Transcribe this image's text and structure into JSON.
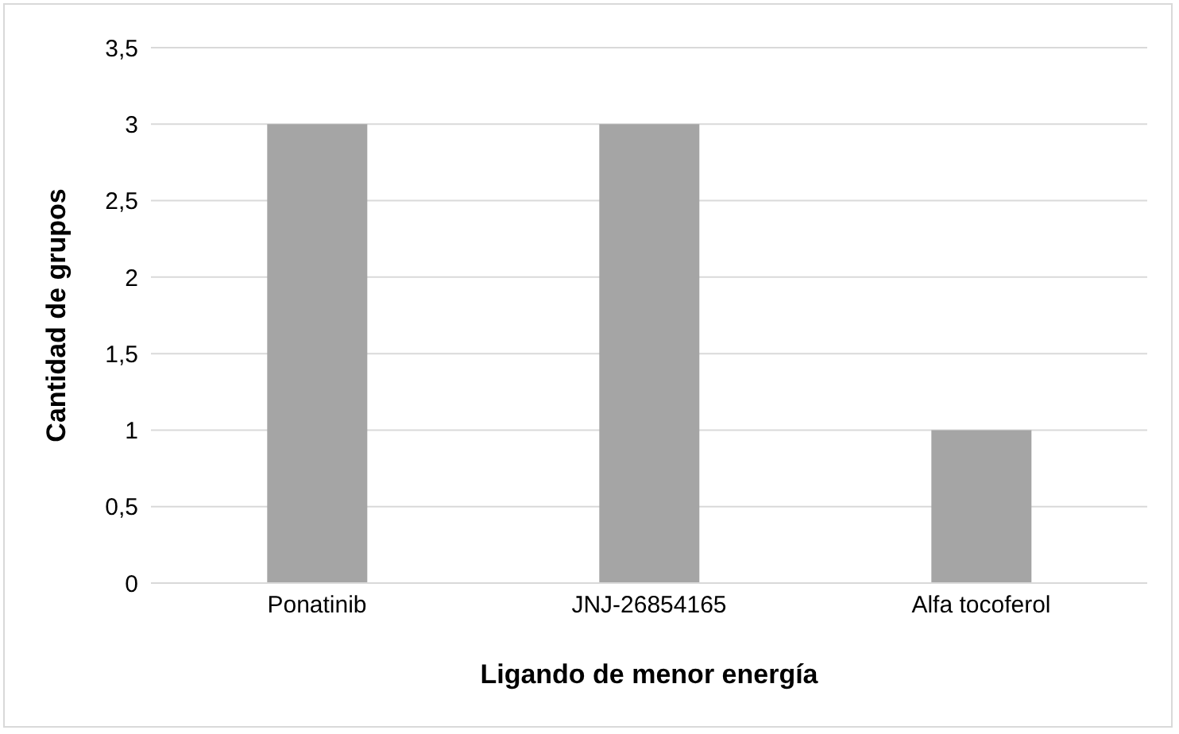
{
  "chart_data": {
    "type": "bar",
    "xlabel": "Ligando de menor energía",
    "ylabel": "Cantidad de grupos",
    "categories": [
      "Ponatinib",
      "JNJ-26854165",
      "Alfa tocoferol"
    ],
    "values": [
      3,
      3,
      1
    ],
    "color": "#a5a5a5",
    "ylim": [
      0,
      3.5
    ],
    "yticks": [
      0,
      {
        "value": 0.5,
        "label": "0,5"
      },
      1,
      {
        "value": 1.5,
        "label": "1,5"
      },
      2,
      {
        "value": 2.5,
        "label": "2,5"
      },
      3,
      {
        "value": 3.5,
        "label": "3,5"
      }
    ],
    "grid": "y"
  }
}
